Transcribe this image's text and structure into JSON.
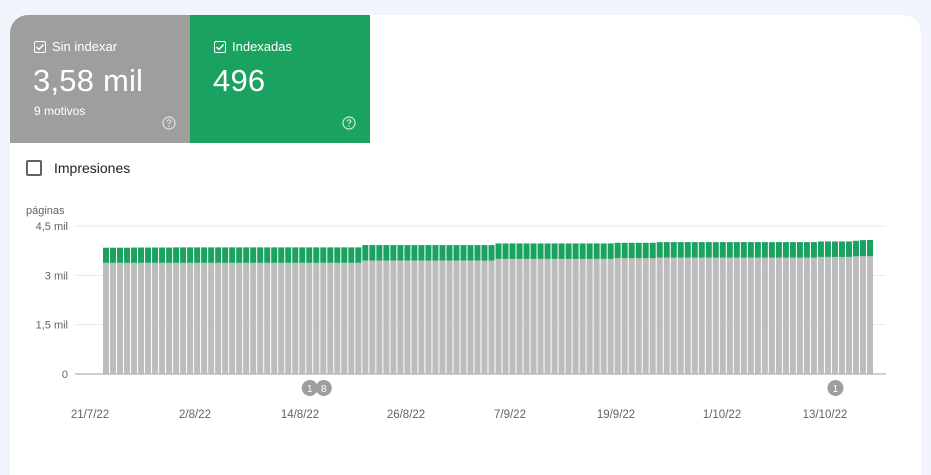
{
  "tiles": [
    {
      "label": "Sin indexar",
      "value": "3,58 mil",
      "sub": "9 motivos",
      "checked": true,
      "color": "#9e9e9e"
    },
    {
      "label": "Indexadas",
      "value": "496",
      "sub": "",
      "checked": true,
      "color": "#1aa260"
    }
  ],
  "impressions": {
    "label": "Impresiones",
    "checked": false
  },
  "chart_data": {
    "type": "bar",
    "stacked": true,
    "ylabel": "páginas",
    "ylim": [
      0,
      4500
    ],
    "yticks": [
      {
        "value": 0,
        "label": "0"
      },
      {
        "value": 1500,
        "label": "1,5 mil"
      },
      {
        "value": 3000,
        "label": "3 mil"
      },
      {
        "value": 4500,
        "label": "4,5 mil"
      }
    ],
    "xtick_labels": [
      "21/7/22",
      "2/8/22",
      "14/8/22",
      "26/8/22",
      "7/9/22",
      "19/9/22",
      "1/10/22",
      "13/10/22"
    ],
    "start_label": "21/7/22",
    "series": [
      {
        "name": "Sin indexar",
        "color": "#bdbdbd",
        "values": [
          3380,
          3380,
          3380,
          3380,
          3380,
          3380,
          3380,
          3380,
          3380,
          3380,
          3380,
          3380,
          3380,
          3380,
          3380,
          3380,
          3380,
          3380,
          3380,
          3380,
          3380,
          3380,
          3380,
          3380,
          3380,
          3380,
          3380,
          3380,
          3380,
          3380,
          3380,
          3380,
          3380,
          3380,
          3380,
          3380,
          3380,
          3450,
          3450,
          3450,
          3450,
          3450,
          3450,
          3450,
          3450,
          3450,
          3450,
          3450,
          3450,
          3450,
          3450,
          3450,
          3450,
          3450,
          3450,
          3450,
          3500,
          3500,
          3500,
          3500,
          3500,
          3500,
          3500,
          3500,
          3500,
          3500,
          3500,
          3500,
          3500,
          3500,
          3500,
          3500,
          3500,
          3520,
          3520,
          3520,
          3520,
          3520,
          3520,
          3540,
          3540,
          3540,
          3540,
          3540,
          3540,
          3540,
          3540,
          3540,
          3540,
          3540,
          3540,
          3540,
          3540,
          3540,
          3540,
          3540,
          3540,
          3540,
          3540,
          3540,
          3540,
          3540,
          3560,
          3560,
          3560,
          3560,
          3560,
          3580,
          3580,
          3580
        ]
      },
      {
        "name": "Indexadas",
        "color": "#1aa260",
        "values": [
          460,
          460,
          460,
          460,
          465,
          465,
          465,
          465,
          465,
          465,
          470,
          470,
          470,
          470,
          470,
          470,
          470,
          470,
          470,
          470,
          470,
          470,
          470,
          470,
          470,
          470,
          470,
          470,
          470,
          470,
          470,
          470,
          470,
          470,
          470,
          470,
          470,
          470,
          470,
          470,
          470,
          470,
          470,
          470,
          470,
          470,
          470,
          470,
          470,
          470,
          470,
          470,
          470,
          470,
          470,
          470,
          470,
          470,
          470,
          470,
          470,
          470,
          470,
          470,
          470,
          470,
          470,
          470,
          470,
          470,
          470,
          470,
          470,
          470,
          470,
          470,
          470,
          470,
          470,
          470,
          470,
          470,
          470,
          470,
          470,
          470,
          470,
          470,
          470,
          470,
          470,
          470,
          470,
          470,
          470,
          470,
          470,
          470,
          470,
          470,
          470,
          470,
          470,
          470,
          470,
          470,
          470,
          470,
          490,
          496
        ]
      }
    ],
    "annotations": [
      {
        "label": "1",
        "index": 29
      },
      {
        "label": "8",
        "index": 31
      },
      {
        "label": "1",
        "index": 104
      }
    ],
    "grid": true,
    "legend": "none"
  }
}
